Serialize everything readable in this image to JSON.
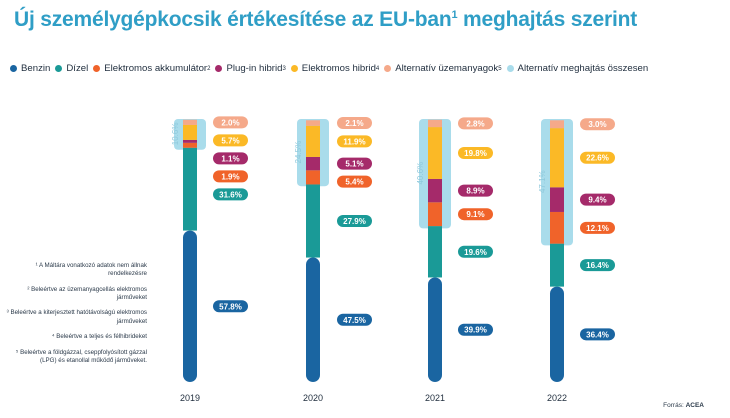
{
  "title": {
    "text": "Új személygépkocsik értékesítése az EU-ban",
    "sup": "1",
    "tail": " meghajtás szerint"
  },
  "legend": [
    {
      "label": "Benzin",
      "sup": "",
      "color": "#1a65a1"
    },
    {
      "label": "Dízel",
      "sup": "",
      "color": "#1a9a97"
    },
    {
      "label": "Elektromos akkumulátor",
      "sup": "2",
      "color": "#f0632a"
    },
    {
      "label": "Plug-in hibrid",
      "sup": "3",
      "color": "#a52a6a"
    },
    {
      "label": "Elektromos hibrid",
      "sup": "4",
      "color": "#fbb926"
    },
    {
      "label": "Alternatív üzemanyagok",
      "sup": "5",
      "color": "#f5a98a"
    },
    {
      "label": "Alternatív meghajtás összesen",
      "sup": "",
      "color": "#a9dceb"
    }
  ],
  "notes": [
    "¹ A Máltára vonatkozó adatok nem állnak rendelkezésre",
    "² Beleértve az üzemanyagcellás elektromos járműveket",
    "³ Beleértve a kiterjesztett hatótávolságú elektromos járműveket",
    "⁴ Beleértve a teljes és félhibrideket",
    "⁵ Beleértve a földgázzal, cseppfolyósított gázzal (LPG) és etanollal működő járműveket."
  ],
  "source": {
    "prefix": "Forrás: ",
    "name": "ACEA"
  },
  "chart_data": {
    "type": "bar",
    "stacked": true,
    "categories": [
      "2019",
      "2020",
      "2021",
      "2022"
    ],
    "series": [
      {
        "name": "Benzin",
        "color": "#1a65a1",
        "values": [
          57.8,
          47.5,
          39.9,
          36.4
        ],
        "labels": [
          "57.8%",
          "47.5%",
          "39.9%",
          "36.4%"
        ]
      },
      {
        "name": "Dízel",
        "color": "#1a9a97",
        "values": [
          31.6,
          27.9,
          19.6,
          16.4
        ],
        "labels": [
          "31.6%",
          "27.9%",
          "19.6%",
          "16.4%"
        ]
      },
      {
        "name": "Elektromos akkumulátor",
        "color": "#f0632a",
        "values": [
          1.9,
          5.4,
          9.1,
          12.1
        ],
        "labels": [
          "1.9%",
          "5.4%",
          "9.1%",
          "12.1%"
        ]
      },
      {
        "name": "Plug-in hibrid",
        "color": "#a52a6a",
        "values": [
          1.1,
          5.1,
          8.9,
          9.4
        ],
        "labels": [
          "1.1%",
          "5.1%",
          "8.9%",
          "9.4%"
        ]
      },
      {
        "name": "Elektromos hibrid",
        "color": "#fbb926",
        "values": [
          5.7,
          11.9,
          19.8,
          22.6
        ],
        "labels": [
          "5.7%",
          "11.9%",
          "19.8%",
          "22.6%"
        ]
      },
      {
        "name": "Alternatív üzemanyagok",
        "color": "#f5a98a",
        "values": [
          2.0,
          2.1,
          2.8,
          3.0
        ],
        "labels": [
          "2.0%",
          "2.1%",
          "2.8%",
          "3.0%"
        ]
      }
    ],
    "alt_total": {
      "name": "Alternatív meghajtás összesen",
      "color": "#a9dceb",
      "values": [
        10.6,
        24.5,
        40.6,
        47.1
      ],
      "labels": [
        "10.6%",
        "24.5%",
        "40.6%",
        "47.1%"
      ]
    },
    "ylim": [
      0,
      100
    ],
    "legend_position": "top"
  }
}
